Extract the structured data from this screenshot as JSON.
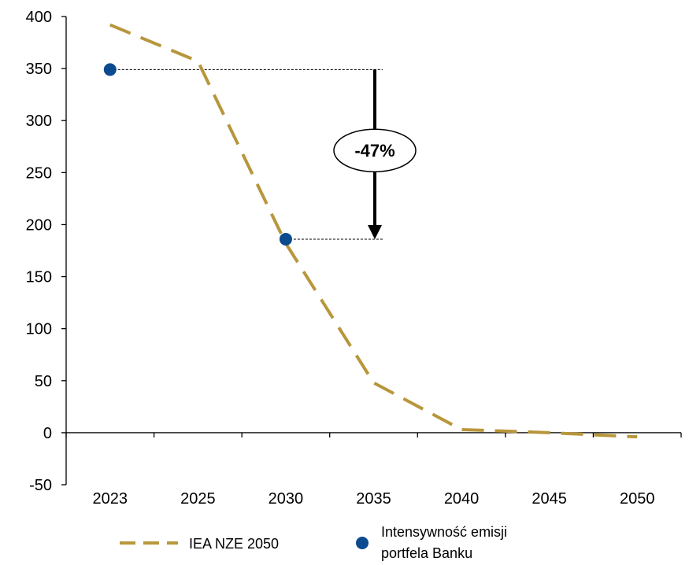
{
  "chart_data": {
    "type": "line",
    "categories": [
      "2023",
      "2025",
      "2030",
      "2035",
      "2040",
      "2045",
      "2050"
    ],
    "ylim": [
      -50,
      400
    ],
    "yticks": [
      -50,
      0,
      50,
      100,
      150,
      200,
      250,
      300,
      350,
      400
    ],
    "grid": false,
    "legend_position": "bottom",
    "series": [
      {
        "name": "IEA NZE 2050",
        "style": "dashed",
        "color": "#B8963C",
        "points": [
          {
            "x": 2023,
            "y": 392
          },
          {
            "x": 2025,
            "y": 357
          },
          {
            "x": 2030,
            "y": 182
          },
          {
            "x": 2035,
            "y": 48
          },
          {
            "x": 2040,
            "y": 3
          },
          {
            "x": 2045,
            "y": 0
          },
          {
            "x": 2050,
            "y": -4
          }
        ]
      },
      {
        "name": "Intensywność emisji portfela Banku",
        "style": "marker",
        "color": "#0B4A8F",
        "points": [
          {
            "x": 2023,
            "y": 349
          },
          {
            "x": 2030,
            "y": 186
          }
        ]
      }
    ],
    "annotation": {
      "label": "-47%",
      "from_y": 349,
      "to_y": 186
    }
  },
  "legend": {
    "line_label": "IEA NZE 2050",
    "marker_label_line1": "Intensywność emisji",
    "marker_label_line2": "portfela Banku"
  }
}
